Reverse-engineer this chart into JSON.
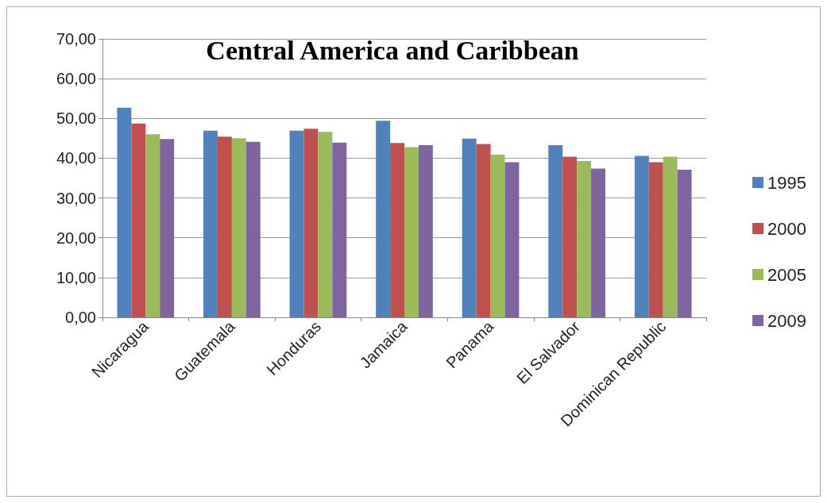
{
  "chart_data": {
    "type": "bar",
    "title": "Central America and Caribbean",
    "categories": [
      "Nicaragua",
      "Guatemala",
      "Honduras",
      "Jamaica",
      "Panama",
      "El Salvador",
      "Dominican Republic"
    ],
    "series": [
      {
        "name": "1995",
        "color": "#4f81bd",
        "values": [
          52.7,
          46.9,
          46.9,
          49.4,
          44.9,
          43.3,
          40.6
        ]
      },
      {
        "name": "2000",
        "color": "#c0504d",
        "values": [
          48.7,
          45.4,
          47.4,
          43.8,
          43.6,
          40.4,
          39.0
        ]
      },
      {
        "name": "2005",
        "color": "#9bbb59",
        "values": [
          46.0,
          45.0,
          46.6,
          42.8,
          40.9,
          39.3,
          40.4
        ]
      },
      {
        "name": "2009",
        "color": "#8064a2",
        "values": [
          44.8,
          44.1,
          43.9,
          43.3,
          39.0,
          37.4,
          37.1
        ]
      }
    ],
    "ylim": [
      0,
      70
    ],
    "yticks": [
      {
        "value": 0,
        "label": "0,00"
      },
      {
        "value": 10,
        "label": "10,00"
      },
      {
        "value": 20,
        "label": "20,00"
      },
      {
        "value": 30,
        "label": "30,00"
      },
      {
        "value": 40,
        "label": "40,00"
      },
      {
        "value": 50,
        "label": "50,00"
      },
      {
        "value": 60,
        "label": "60,00"
      },
      {
        "value": 70,
        "label": "70,00"
      }
    ],
    "grid": true,
    "legend": "right"
  }
}
